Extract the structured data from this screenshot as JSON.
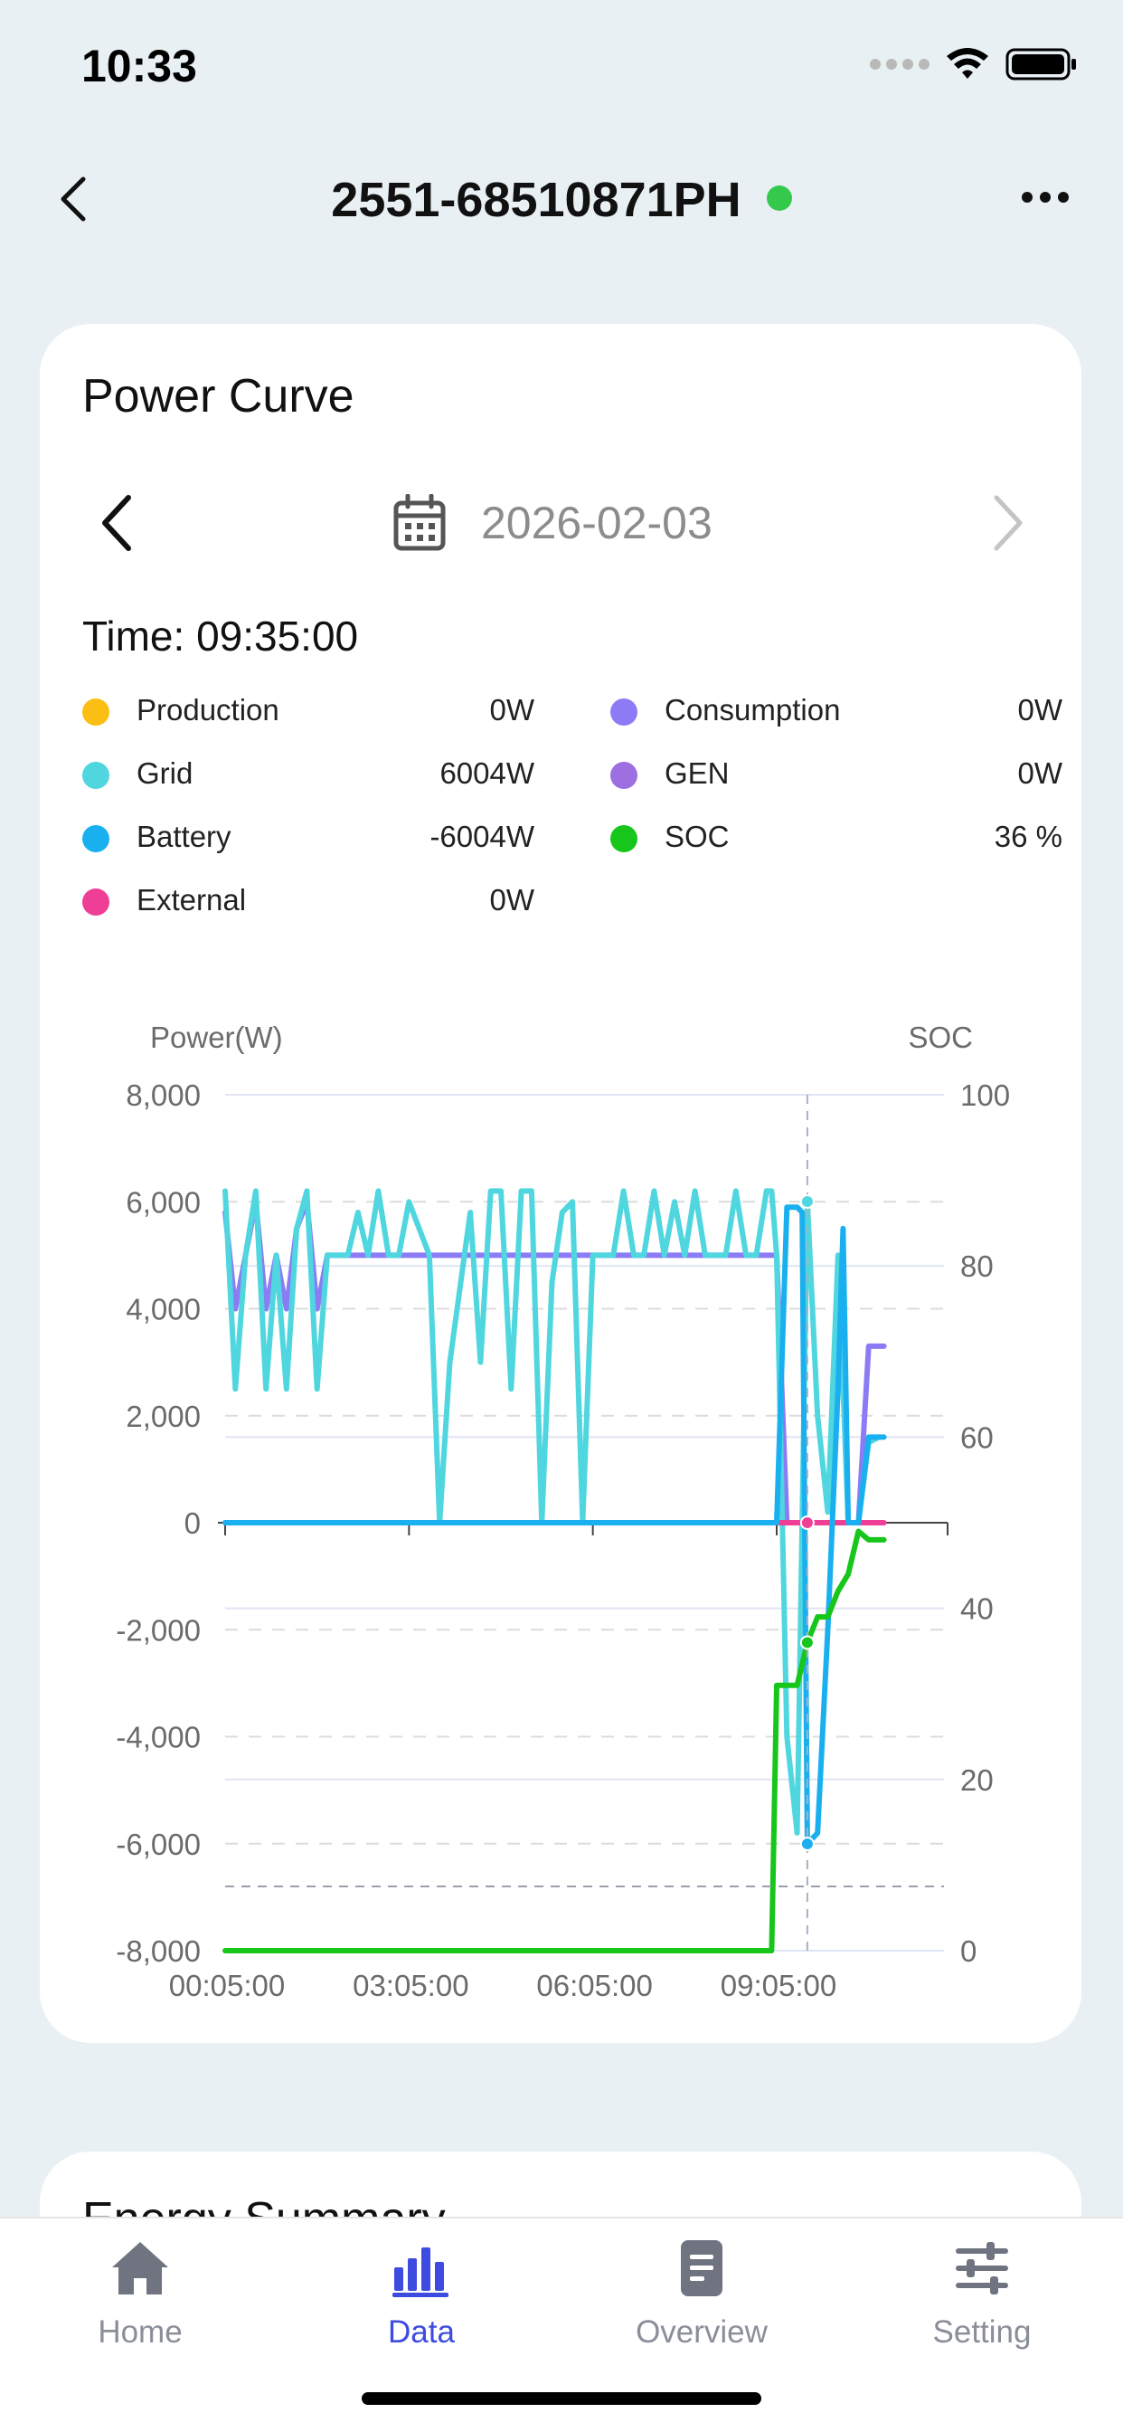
{
  "status_bar": {
    "time": "10:33"
  },
  "header": {
    "title": "2551-68510871PH",
    "status_color": "#34c94a"
  },
  "power_curve": {
    "title": "Power Curve",
    "date": "2026-02-03",
    "time_label": "Time: 09:35:00",
    "legend": [
      {
        "name": "Production",
        "value": "0W",
        "color": "#fbbf14"
      },
      {
        "name": "Consumption",
        "value": "0W",
        "color": "#8b7cf6"
      },
      {
        "name": "Grid",
        "value": "6004W",
        "color": "#4fd6df"
      },
      {
        "name": "GEN",
        "value": "0W",
        "color": "#9d6fe0"
      },
      {
        "name": "Battery",
        "value": "-6004W",
        "color": "#1ab0f0"
      },
      {
        "name": "SOC",
        "value": "36 %",
        "color": "#17c61a"
      },
      {
        "name": "External",
        "value": "0W",
        "color": "#ef3e96"
      }
    ]
  },
  "chart_data": {
    "type": "line",
    "ylabel_left": "Power(W)",
    "ylabel_right": "SOC",
    "y_left_ticks": [
      "8,000",
      "6,000",
      "4,000",
      "2,000",
      "0",
      "-2,000",
      "-4,000",
      "-6,000",
      "-8,000"
    ],
    "y_right_ticks": [
      "100",
      "80",
      "60",
      "40",
      "20",
      "0"
    ],
    "x_ticks": [
      "00:05:00",
      "03:05:00",
      "06:05:00",
      "09:05:00"
    ],
    "ylim_left": [
      -8000,
      8000
    ],
    "ylim_right": [
      0,
      100
    ],
    "crosshair_time": "09:35:00",
    "series": [
      {
        "name": "Grid",
        "color": "#4fd6df",
        "axis": "left",
        "points": [
          [
            "00:05",
            6200
          ],
          [
            "00:15",
            2500
          ],
          [
            "00:25",
            5000
          ],
          [
            "00:35",
            6200
          ],
          [
            "00:45",
            2500
          ],
          [
            "00:55",
            5000
          ],
          [
            "01:05",
            2500
          ],
          [
            "01:15",
            5500
          ],
          [
            "01:25",
            6200
          ],
          [
            "01:35",
            2500
          ],
          [
            "01:45",
            5000
          ],
          [
            "02:05",
            5000
          ],
          [
            "02:15",
            5800
          ],
          [
            "02:25",
            5000
          ],
          [
            "02:35",
            6200
          ],
          [
            "02:45",
            5000
          ],
          [
            "02:55",
            5000
          ],
          [
            "03:05",
            6000
          ],
          [
            "03:25",
            5000
          ],
          [
            "03:35",
            0
          ],
          [
            "03:45",
            3000
          ],
          [
            "04:05",
            5800
          ],
          [
            "04:15",
            3000
          ],
          [
            "04:25",
            6200
          ],
          [
            "04:35",
            6200
          ],
          [
            "04:45",
            2500
          ],
          [
            "04:55",
            6200
          ],
          [
            "05:05",
            6200
          ],
          [
            "05:15",
            0
          ],
          [
            "05:25",
            4500
          ],
          [
            "05:35",
            5800
          ],
          [
            "05:45",
            6000
          ],
          [
            "05:55",
            0
          ],
          [
            "06:05",
            5000
          ],
          [
            "06:25",
            5000
          ],
          [
            "06:35",
            6200
          ],
          [
            "06:45",
            5000
          ],
          [
            "06:55",
            5000
          ],
          [
            "07:05",
            6200
          ],
          [
            "07:15",
            5000
          ],
          [
            "07:25",
            6000
          ],
          [
            "07:35",
            5000
          ],
          [
            "07:45",
            6200
          ],
          [
            "07:55",
            5000
          ],
          [
            "08:15",
            5000
          ],
          [
            "08:25",
            6200
          ],
          [
            "08:35",
            5000
          ],
          [
            "08:45",
            5000
          ],
          [
            "08:55",
            6200
          ],
          [
            "09:00",
            6200
          ],
          [
            "09:05",
            5000
          ],
          [
            "09:15",
            -4000
          ],
          [
            "09:25",
            -5800
          ],
          [
            "09:35",
            6004
          ],
          [
            "09:45",
            2000
          ],
          [
            "09:55",
            200
          ],
          [
            "10:05",
            5000
          ],
          [
            "10:15",
            0
          ],
          [
            "10:25",
            0
          ],
          [
            "10:35",
            1500
          ],
          [
            "10:45",
            1600
          ]
        ]
      },
      {
        "name": "Consumption",
        "color": "#8b7cf6",
        "axis": "left",
        "points": [
          [
            "00:05",
            5800
          ],
          [
            "00:15",
            4000
          ],
          [
            "00:25",
            5000
          ],
          [
            "00:35",
            6000
          ],
          [
            "00:45",
            4000
          ],
          [
            "00:55",
            5000
          ],
          [
            "01:05",
            4000
          ],
          [
            "01:15",
            5500
          ],
          [
            "01:25",
            6000
          ],
          [
            "01:35",
            4000
          ],
          [
            "01:45",
            5000
          ],
          [
            "09:05",
            5000
          ],
          [
            "09:15",
            0
          ],
          [
            "09:35",
            0
          ],
          [
            "10:05",
            0
          ],
          [
            "10:25",
            0
          ],
          [
            "10:35",
            3300
          ],
          [
            "10:50",
            3300
          ]
        ]
      },
      {
        "name": "Battery",
        "color": "#1ab0f0",
        "axis": "left",
        "points": [
          [
            "00:05",
            0
          ],
          [
            "09:05",
            0
          ],
          [
            "09:15",
            5900
          ],
          [
            "09:25",
            5900
          ],
          [
            "09:30",
            5800
          ],
          [
            "09:35",
            -6004
          ],
          [
            "09:45",
            -5800
          ],
          [
            "09:55",
            -2000
          ],
          [
            "10:05",
            2500
          ],
          [
            "10:10",
            5500
          ],
          [
            "10:15",
            0
          ],
          [
            "10:25",
            0
          ],
          [
            "10:35",
            1600
          ],
          [
            "10:50",
            1600
          ]
        ]
      },
      {
        "name": "External",
        "color": "#ef3e96",
        "axis": "left",
        "points": [
          [
            "00:05",
            0
          ],
          [
            "10:50",
            0
          ]
        ]
      },
      {
        "name": "SOC",
        "color": "#17c61a",
        "axis": "right",
        "points": [
          [
            "00:05",
            0
          ],
          [
            "09:00",
            0
          ],
          [
            "09:05",
            31
          ],
          [
            "09:15",
            31
          ],
          [
            "09:25",
            31
          ],
          [
            "09:35",
            36
          ],
          [
            "09:45",
            39
          ],
          [
            "09:55",
            39
          ],
          [
            "10:05",
            42
          ],
          [
            "10:15",
            44
          ],
          [
            "10:25",
            49
          ],
          [
            "10:35",
            48
          ],
          [
            "10:50",
            48
          ]
        ]
      }
    ]
  },
  "energy_summary": {
    "title": "Energy Summary"
  },
  "tabs": [
    {
      "label": "Home",
      "icon": "home-icon"
    },
    {
      "label": "Data",
      "icon": "bar-chart-icon"
    },
    {
      "label": "Overview",
      "icon": "document-icon"
    },
    {
      "label": "Setting",
      "icon": "sliders-icon"
    }
  ]
}
